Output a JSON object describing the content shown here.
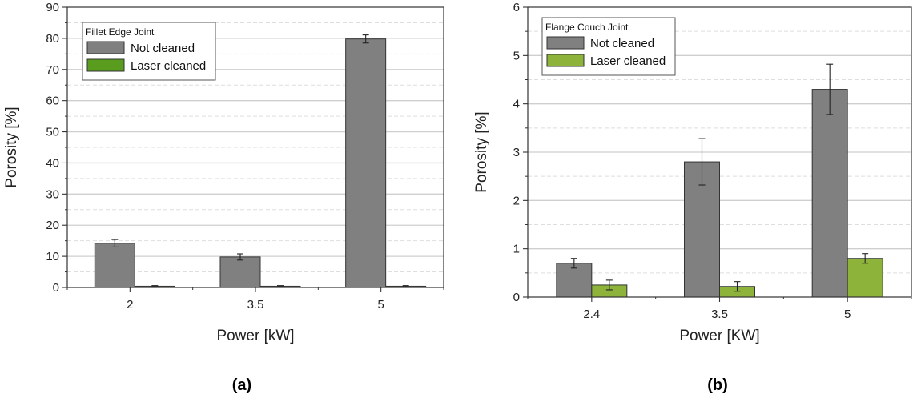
{
  "chart_data": [
    {
      "type": "bar",
      "caption": "(a)",
      "legend_title": "Fillet Edge Joint",
      "categories": [
        "2",
        "3.5",
        "5"
      ],
      "series": [
        {
          "name": "Not cleaned",
          "values": [
            14.2,
            9.8,
            79.8
          ],
          "errors": [
            1.2,
            1.0,
            1.3
          ],
          "color": "#808080"
        },
        {
          "name": "Laser cleaned",
          "values": [
            0.4,
            0.4,
            0.4
          ],
          "errors": [
            0.2,
            0.2,
            0.2
          ],
          "color": "#5a9c1e"
        }
      ],
      "xlabel": "Power [kW]",
      "ylabel": "Porosity [%]",
      "ylim": [
        0,
        90
      ],
      "yticks": [
        "0",
        "10",
        "20",
        "30",
        "40",
        "50",
        "60",
        "70",
        "80",
        "90"
      ],
      "grid": true,
      "legend_position": "top-left"
    },
    {
      "type": "bar",
      "caption": "(b)",
      "legend_title": "Flange Couch Joint",
      "categories": [
        "2.4",
        "3.5",
        "5"
      ],
      "series": [
        {
          "name": "Not cleaned",
          "values": [
            0.7,
            2.8,
            4.3
          ],
          "errors": [
            0.1,
            0.48,
            0.52
          ],
          "color": "#808080"
        },
        {
          "name": "Laser cleaned",
          "values": [
            0.25,
            0.22,
            0.8
          ],
          "errors": [
            0.1,
            0.1,
            0.1
          ],
          "color": "#8db33a"
        }
      ],
      "xlabel": "Power [KW]",
      "ylabel": "Porosity [%]",
      "ylim": [
        0,
        6
      ],
      "yticks": [
        "0",
        "1",
        "2",
        "3",
        "4",
        "5",
        "6"
      ],
      "grid": true,
      "legend_position": "top-left"
    }
  ]
}
